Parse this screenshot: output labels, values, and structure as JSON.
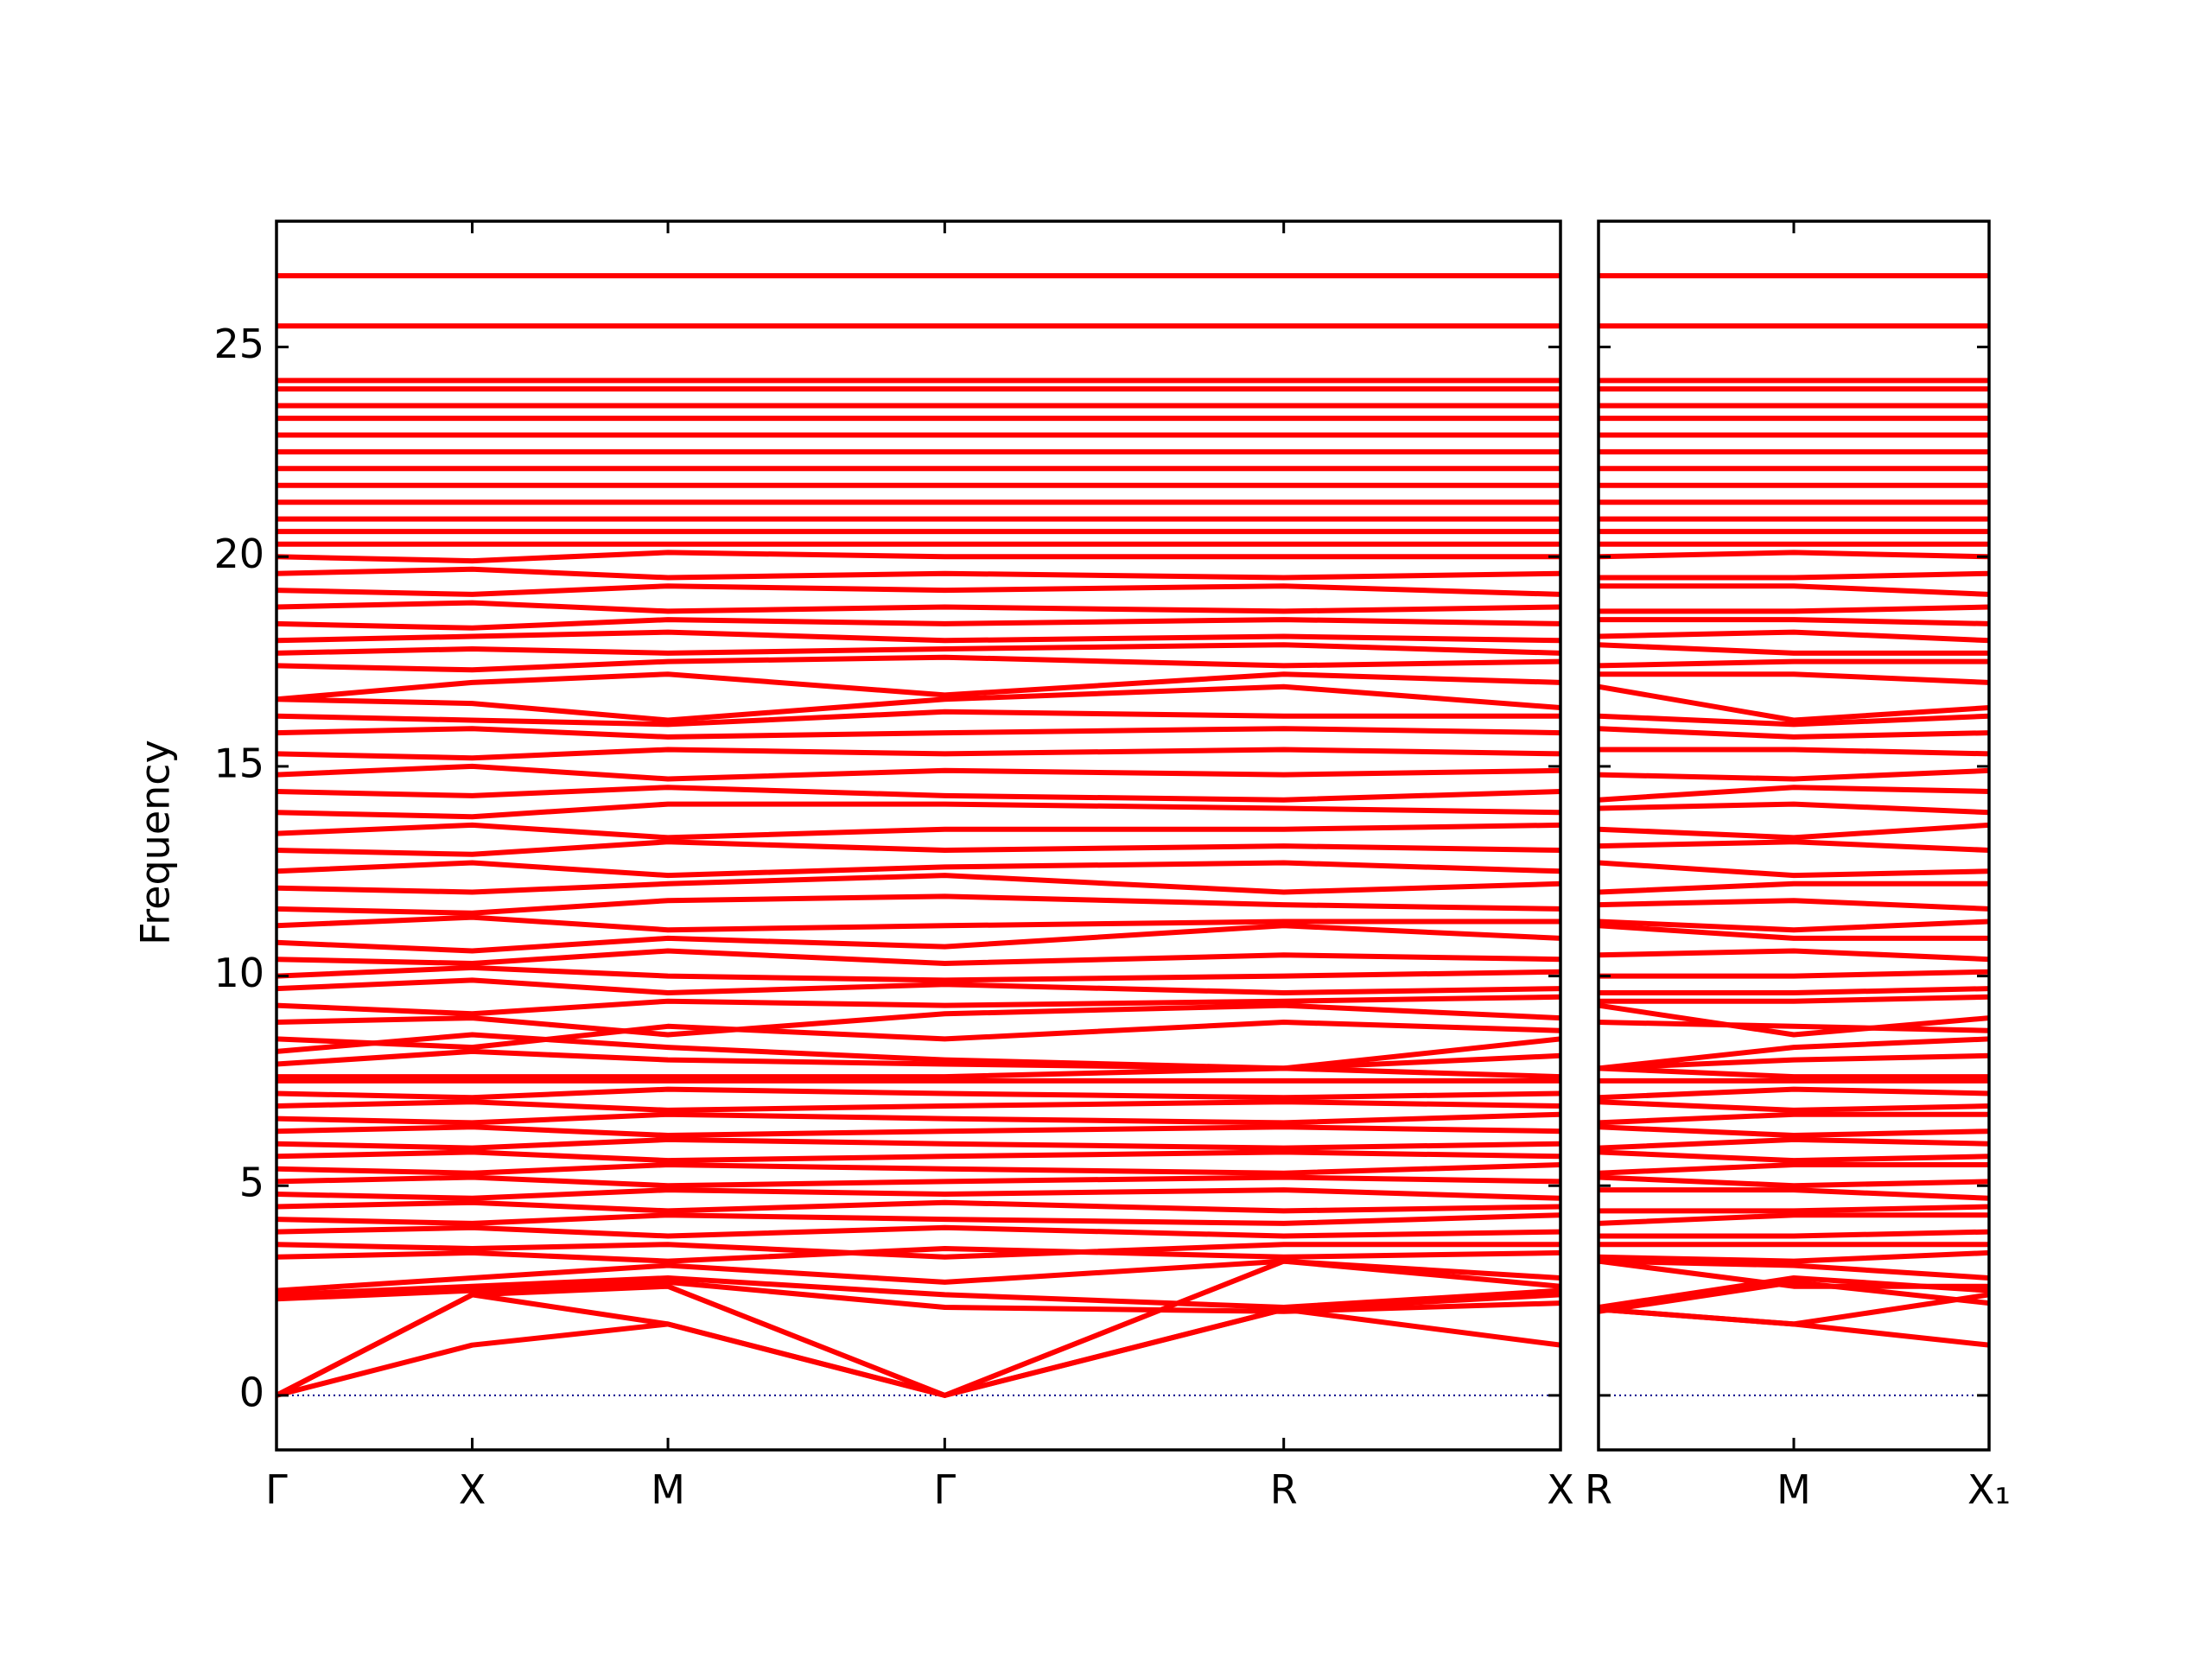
{
  "chart_data": [
    {
      "type": "line",
      "ylabel": "Frequency",
      "color": "#ff0000",
      "x": [
        0,
        0.5,
        1.0,
        1.707,
        2.573,
        3.28
      ],
      "xlim": [
        0,
        3.28
      ],
      "xticks": [
        {
          "value": 0,
          "label": "Γ"
        },
        {
          "value": 0.5,
          "label": "X"
        },
        {
          "value": 1.0,
          "label": "M"
        },
        {
          "value": 1.707,
          "label": "Γ"
        },
        {
          "value": 2.573,
          "label": "R"
        },
        {
          "value": 3.28,
          "label": "X"
        }
      ],
      "ylim": [
        -1.3,
        28
      ],
      "yticks": [
        0,
        5,
        10,
        15,
        20,
        25
      ],
      "ytick_labels": true,
      "reference_line": {
        "y": 0,
        "color": "#00008b",
        "linestyle": "dotted"
      },
      "series": [
        {
          "values": [
            0,
            1.2,
            1.7,
            0,
            2.05,
            1.2
          ]
        },
        {
          "values": [
            0,
            2.4,
            1.7,
            0,
            2.05,
            2.4
          ]
        },
        {
          "values": [
            0,
            2.4,
            2.6,
            0,
            3.2,
            2.6
          ]
        },
        {
          "values": [
            2.3,
            2.5,
            2.7,
            2.1,
            2.0,
            2.2
          ]
        },
        {
          "values": [
            2.4,
            2.6,
            2.8,
            2.4,
            2.1,
            2.5
          ]
        },
        {
          "values": [
            2.5,
            2.8,
            3.1,
            2.7,
            3.2,
            2.8
          ]
        },
        {
          "values": [
            3.3,
            3.4,
            3.2,
            3.5,
            3.3,
            3.4
          ]
        },
        {
          "values": [
            3.6,
            3.5,
            3.6,
            3.3,
            3.6,
            3.6
          ]
        },
        {
          "values": [
            3.9,
            4.0,
            3.8,
            4.0,
            3.8,
            3.9
          ]
        },
        {
          "values": [
            4.2,
            4.1,
            4.3,
            4.2,
            4.1,
            4.3
          ]
        },
        {
          "values": [
            4.5,
            4.6,
            4.4,
            4.6,
            4.4,
            4.5
          ]
        },
        {
          "values": [
            4.8,
            4.7,
            4.9,
            4.8,
            4.9,
            4.7
          ]
        },
        {
          "values": [
            5.1,
            5.2,
            5.0,
            5.1,
            5.2,
            5.1
          ]
        },
        {
          "values": [
            5.4,
            5.3,
            5.5,
            5.4,
            5.3,
            5.5
          ]
        },
        {
          "values": [
            5.7,
            5.8,
            5.6,
            5.7,
            5.8,
            5.7
          ]
        },
        {
          "values": [
            6.0,
            5.9,
            6.1,
            6.0,
            5.9,
            6.0
          ]
        },
        {
          "values": [
            6.3,
            6.4,
            6.2,
            6.3,
            6.4,
            6.3
          ]
        },
        {
          "values": [
            6.6,
            6.5,
            6.7,
            6.6,
            6.5,
            6.7
          ]
        },
        {
          "values": [
            6.9,
            7.0,
            6.8,
            6.9,
            7.0,
            6.9
          ]
        },
        {
          "values": [
            7.2,
            7.1,
            7.3,
            7.2,
            7.1,
            7.2
          ]
        },
        {
          "values": [
            7.5,
            7.5,
            7.5,
            7.5,
            7.5,
            7.5
          ]
        },
        {
          "values": [
            7.6,
            7.6,
            7.6,
            7.6,
            7.8,
            7.6
          ]
        },
        {
          "values": [
            7.9,
            8.2,
            8.0,
            7.9,
            7.8,
            8.1
          ]
        },
        {
          "values": [
            8.2,
            8.6,
            8.3,
            8.0,
            7.8,
            8.5
          ]
        },
        {
          "values": [
            8.5,
            8.3,
            8.8,
            8.5,
            8.9,
            8.7
          ]
        },
        {
          "values": [
            8.9,
            9.0,
            8.6,
            9.1,
            9.3,
            9.0
          ]
        },
        {
          "values": [
            9.3,
            9.1,
            9.4,
            9.3,
            9.4,
            9.5
          ]
        },
        {
          "values": [
            9.7,
            9.9,
            9.6,
            9.8,
            9.6,
            9.7
          ]
        },
        {
          "values": [
            10.0,
            10.2,
            10.0,
            9.9,
            10.0,
            10.1
          ]
        },
        {
          "values": [
            10.4,
            10.3,
            10.6,
            10.3,
            10.5,
            10.4
          ]
        },
        {
          "values": [
            10.8,
            10.6,
            10.9,
            10.7,
            11.2,
            10.9
          ]
        },
        {
          "values": [
            11.2,
            11.4,
            11.1,
            11.2,
            11.3,
            11.3
          ]
        },
        {
          "values": [
            11.6,
            11.5,
            11.8,
            11.9,
            11.7,
            11.6
          ]
        },
        {
          "values": [
            12.1,
            12.0,
            12.2,
            12.4,
            12.0,
            12.2
          ]
        },
        {
          "values": [
            12.5,
            12.7,
            12.4,
            12.6,
            12.7,
            12.5
          ]
        },
        {
          "values": [
            13.0,
            12.9,
            13.2,
            13.0,
            13.1,
            13.0
          ]
        },
        {
          "values": [
            13.4,
            13.6,
            13.3,
            13.5,
            13.5,
            13.6
          ]
        },
        {
          "values": [
            13.9,
            13.8,
            14.1,
            14.1,
            14.0,
            13.9
          ]
        },
        {
          "values": [
            14.4,
            14.3,
            14.5,
            14.3,
            14.2,
            14.4
          ]
        },
        {
          "values": [
            14.8,
            15.0,
            14.7,
            14.9,
            14.8,
            14.9
          ]
        },
        {
          "values": [
            15.3,
            15.2,
            15.4,
            15.3,
            15.4,
            15.3
          ]
        },
        {
          "values": [
            15.8,
            15.9,
            15.7,
            15.8,
            15.9,
            15.8
          ]
        },
        {
          "values": [
            16.2,
            16.1,
            16.0,
            16.3,
            16.2,
            16.2
          ]
        },
        {
          "values": [
            16.6,
            16.5,
            16.1,
            16.6,
            16.9,
            16.4
          ]
        },
        {
          "values": [
            16.6,
            17.0,
            17.2,
            16.7,
            17.2,
            17.0
          ]
        },
        {
          "values": [
            17.4,
            17.3,
            17.5,
            17.6,
            17.4,
            17.5
          ]
        },
        {
          "values": [
            17.7,
            17.8,
            17.7,
            17.8,
            17.9,
            17.7
          ]
        },
        {
          "values": [
            18.0,
            18.1,
            18.2,
            18.0,
            18.1,
            18.0
          ]
        },
        {
          "values": [
            18.4,
            18.3,
            18.5,
            18.4,
            18.5,
            18.4
          ]
        },
        {
          "values": [
            18.8,
            18.9,
            18.7,
            18.8,
            18.7,
            18.8
          ]
        },
        {
          "values": [
            19.2,
            19.1,
            19.3,
            19.2,
            19.3,
            19.1
          ]
        },
        {
          "values": [
            19.6,
            19.7,
            19.5,
            19.6,
            19.5,
            19.6
          ]
        },
        {
          "values": [
            20.0,
            19.9,
            20.1,
            20.0,
            20.0,
            20.0
          ]
        },
        {
          "values": [
            20.3,
            20.3,
            20.3,
            20.3,
            20.3,
            20.3
          ]
        },
        {
          "values": [
            20.6,
            20.6,
            20.6,
            20.6,
            20.6,
            20.6
          ]
        },
        {
          "values": [
            20.9,
            20.9,
            20.9,
            20.9,
            20.9,
            20.9
          ]
        },
        {
          "values": [
            21.3,
            21.3,
            21.3,
            21.3,
            21.3,
            21.3
          ]
        },
        {
          "values": [
            21.7,
            21.7,
            21.7,
            21.7,
            21.7,
            21.7
          ]
        },
        {
          "values": [
            22.1,
            22.1,
            22.1,
            22.1,
            22.1,
            22.1
          ]
        },
        {
          "values": [
            22.5,
            22.5,
            22.5,
            22.5,
            22.5,
            22.5
          ]
        },
        {
          "values": [
            22.9,
            22.9,
            22.9,
            22.9,
            22.9,
            22.9
          ]
        },
        {
          "values": [
            23.3,
            23.3,
            23.3,
            23.3,
            23.3,
            23.3
          ]
        },
        {
          "values": [
            23.6,
            23.6,
            23.6,
            23.6,
            23.6,
            23.6
          ]
        },
        {
          "values": [
            24.0,
            24.0,
            24.0,
            24.0,
            24.0,
            24.0
          ]
        },
        {
          "values": [
            24.2,
            24.2,
            24.2,
            24.2,
            24.2,
            24.2
          ]
        },
        {
          "values": [
            25.5,
            25.5,
            25.5,
            25.5,
            25.5,
            25.5
          ]
        },
        {
          "values": [
            26.7,
            26.7,
            26.7,
            26.7,
            26.7,
            26.7
          ]
        }
      ]
    },
    {
      "type": "line",
      "color": "#ff0000",
      "x": [
        0,
        0.5,
        1.0
      ],
      "xlim": [
        0,
        1.0
      ],
      "xticks": [
        {
          "value": 0,
          "label": "R"
        },
        {
          "value": 0.5,
          "label": "M"
        },
        {
          "value": 1.0,
          "label": "X₁"
        }
      ],
      "ylim": [
        -1.3,
        28
      ],
      "yticks": [
        0,
        5,
        10,
        15,
        20,
        25
      ],
      "ytick_labels": false,
      "reference_line": {
        "y": 0,
        "color": "#00008b",
        "linestyle": "dotted"
      },
      "series": [
        {
          "values": [
            2.05,
            1.7,
            1.2
          ]
        },
        {
          "values": [
            2.05,
            1.7,
            2.4
          ]
        },
        {
          "values": [
            3.2,
            2.6,
            2.6
          ]
        },
        {
          "values": [
            2.0,
            2.7,
            2.2
          ]
        },
        {
          "values": [
            2.1,
            2.8,
            2.5
          ]
        },
        {
          "values": [
            3.2,
            3.1,
            2.8
          ]
        },
        {
          "values": [
            3.3,
            3.2,
            3.4
          ]
        },
        {
          "values": [
            3.6,
            3.6,
            3.6
          ]
        },
        {
          "values": [
            3.8,
            3.8,
            3.9
          ]
        },
        {
          "values": [
            4.1,
            4.3,
            4.3
          ]
        },
        {
          "values": [
            4.4,
            4.4,
            4.5
          ]
        },
        {
          "values": [
            4.9,
            4.9,
            4.7
          ]
        },
        {
          "values": [
            5.2,
            5.0,
            5.1
          ]
        },
        {
          "values": [
            5.3,
            5.5,
            5.5
          ]
        },
        {
          "values": [
            5.8,
            5.6,
            5.7
          ]
        },
        {
          "values": [
            5.9,
            6.1,
            6.0
          ]
        },
        {
          "values": [
            6.4,
            6.2,
            6.3
          ]
        },
        {
          "values": [
            6.5,
            6.7,
            6.7
          ]
        },
        {
          "values": [
            7.0,
            6.8,
            6.9
          ]
        },
        {
          "values": [
            7.1,
            7.3,
            7.2
          ]
        },
        {
          "values": [
            7.5,
            7.5,
            7.5
          ]
        },
        {
          "values": [
            7.8,
            7.6,
            7.6
          ]
        },
        {
          "values": [
            7.8,
            8.0,
            8.1
          ]
        },
        {
          "values": [
            7.8,
            8.3,
            8.5
          ]
        },
        {
          "values": [
            8.9,
            8.8,
            8.7
          ]
        },
        {
          "values": [
            9.3,
            8.6,
            9.0
          ]
        },
        {
          "values": [
            9.4,
            9.4,
            9.5
          ]
        },
        {
          "values": [
            9.6,
            9.6,
            9.7
          ]
        },
        {
          "values": [
            10.0,
            10.0,
            10.1
          ]
        },
        {
          "values": [
            10.5,
            10.6,
            10.4
          ]
        },
        {
          "values": [
            11.2,
            10.9,
            10.9
          ]
        },
        {
          "values": [
            11.3,
            11.1,
            11.3
          ]
        },
        {
          "values": [
            11.7,
            11.8,
            11.6
          ]
        },
        {
          "values": [
            12.0,
            12.2,
            12.2
          ]
        },
        {
          "values": [
            12.7,
            12.4,
            12.5
          ]
        },
        {
          "values": [
            13.1,
            13.2,
            13.0
          ]
        },
        {
          "values": [
            13.5,
            13.3,
            13.6
          ]
        },
        {
          "values": [
            14.0,
            14.1,
            13.9
          ]
        },
        {
          "values": [
            14.2,
            14.5,
            14.4
          ]
        },
        {
          "values": [
            14.8,
            14.7,
            14.9
          ]
        },
        {
          "values": [
            15.4,
            15.4,
            15.3
          ]
        },
        {
          "values": [
            15.9,
            15.7,
            15.8
          ]
        },
        {
          "values": [
            16.2,
            16.0,
            16.2
          ]
        },
        {
          "values": [
            16.9,
            16.1,
            16.4
          ]
        },
        {
          "values": [
            17.2,
            17.2,
            17.0
          ]
        },
        {
          "values": [
            17.4,
            17.5,
            17.5
          ]
        },
        {
          "values": [
            17.9,
            17.7,
            17.7
          ]
        },
        {
          "values": [
            18.1,
            18.2,
            18.0
          ]
        },
        {
          "values": [
            18.5,
            18.5,
            18.4
          ]
        },
        {
          "values": [
            18.7,
            18.7,
            18.8
          ]
        },
        {
          "values": [
            19.3,
            19.3,
            19.1
          ]
        },
        {
          "values": [
            19.5,
            19.5,
            19.6
          ]
        },
        {
          "values": [
            20.0,
            20.1,
            20.0
          ]
        },
        {
          "values": [
            20.3,
            20.3,
            20.3
          ]
        },
        {
          "values": [
            20.6,
            20.6,
            20.6
          ]
        },
        {
          "values": [
            20.9,
            20.9,
            20.9
          ]
        },
        {
          "values": [
            21.3,
            21.3,
            21.3
          ]
        },
        {
          "values": [
            21.7,
            21.7,
            21.7
          ]
        },
        {
          "values": [
            22.1,
            22.1,
            22.1
          ]
        },
        {
          "values": [
            22.5,
            22.5,
            22.5
          ]
        },
        {
          "values": [
            22.9,
            22.9,
            22.9
          ]
        },
        {
          "values": [
            23.3,
            23.3,
            23.3
          ]
        },
        {
          "values": [
            23.6,
            23.6,
            23.6
          ]
        },
        {
          "values": [
            24.0,
            24.0,
            24.0
          ]
        },
        {
          "values": [
            24.2,
            24.2,
            24.2
          ]
        },
        {
          "values": [
            25.5,
            25.5,
            25.5
          ]
        },
        {
          "values": [
            26.7,
            26.7,
            26.7
          ]
        }
      ]
    }
  ]
}
